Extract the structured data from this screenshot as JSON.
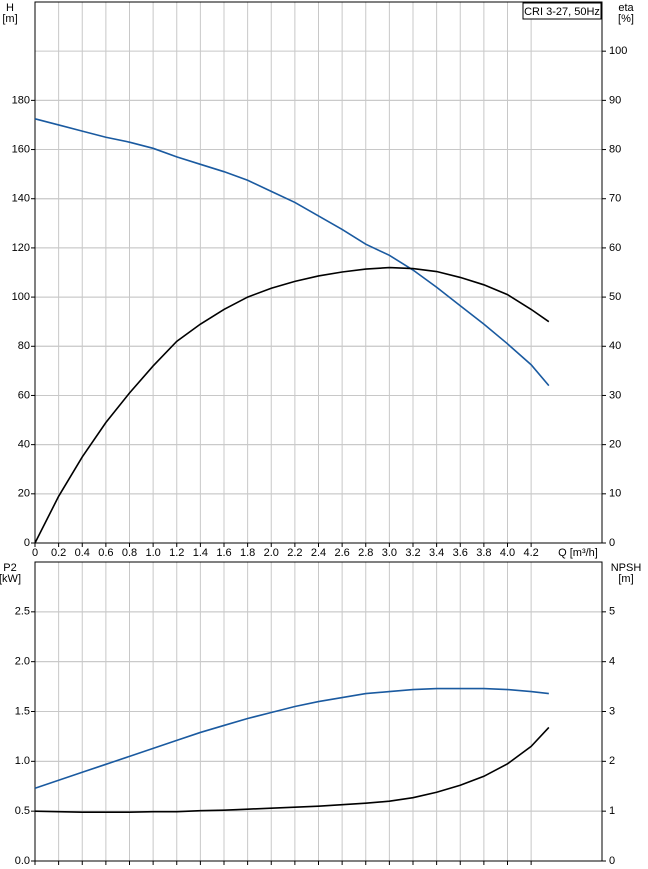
{
  "chart_data": [
    {
      "type": "line",
      "title": "CRI 3-27, 50Hz",
      "ylabel": "H",
      "yunit": "[m]",
      "y2label": "eta",
      "y2unit": "[%]",
      "xlabel": "Q [m³/h]",
      "x": [
        0,
        0.2,
        0.4,
        0.6,
        0.8,
        1.0,
        1.2,
        1.4,
        1.6,
        1.8,
        2.0,
        2.2,
        2.4,
        2.6,
        2.8,
        3.0,
        3.2,
        3.4,
        3.6,
        3.8,
        4.0,
        4.2,
        4.35
      ],
      "series": [
        {
          "color": "#1a5aa0",
          "axis": "y",
          "values": [
            172.5,
            170,
            167.5,
            165,
            163,
            160.5,
            157,
            154,
            151,
            147.5,
            143,
            138.5,
            133,
            127.5,
            121.5,
            117,
            111,
            104,
            96.5,
            89,
            81,
            72.5,
            64
          ]
        },
        {
          "color": "#000000",
          "axis": "y2",
          "values": [
            0,
            9.5,
            17.5,
            24.5,
            30.5,
            36,
            41,
            44.5,
            47.5,
            50,
            51.8,
            53.2,
            54.3,
            55.1,
            55.7,
            56,
            55.8,
            55.2,
            54,
            52.5,
            50.5,
            47.5,
            45
          ]
        }
      ],
      "xlim": [
        0,
        4.8
      ],
      "ylim": [
        0,
        220
      ],
      "y2lim": [
        0,
        110
      ],
      "xticks": [
        0,
        0.2,
        0.4,
        0.6,
        0.8,
        {
          "value": 1,
          "label": "1.0"
        },
        1.2,
        1.4,
        1.6,
        1.8,
        {
          "value": 2,
          "label": "2.0"
        },
        2.2,
        2.4,
        2.6,
        2.8,
        {
          "value": 3,
          "label": "3.0"
        },
        3.2,
        3.4,
        3.6,
        3.8,
        {
          "value": 4,
          "label": "4.0"
        },
        4.2
      ],
      "yticks": [
        0,
        20,
        40,
        60,
        80,
        100,
        120,
        140,
        160,
        180
      ],
      "y2ticks": [
        0,
        10,
        20,
        30,
        40,
        50,
        60,
        70,
        80,
        90,
        100
      ],
      "grid": true
    },
    {
      "type": "line",
      "ylabel": "P2",
      "yunit": "[kW]",
      "y2label": "NPSH",
      "y2unit": "[m]",
      "x": [
        0,
        0.2,
        0.4,
        0.6,
        0.8,
        1.0,
        1.2,
        1.4,
        1.6,
        1.8,
        2.0,
        2.2,
        2.4,
        2.6,
        2.8,
        3.0,
        3.2,
        3.4,
        3.6,
        3.8,
        4.0,
        4.2,
        4.35
      ],
      "series": [
        {
          "color": "#1a5aa0",
          "axis": "y",
          "values": [
            0.73,
            0.81,
            0.89,
            0.97,
            1.05,
            1.13,
            1.21,
            1.29,
            1.36,
            1.43,
            1.49,
            1.55,
            1.6,
            1.64,
            1.68,
            1.7,
            1.72,
            1.73,
            1.73,
            1.73,
            1.72,
            1.7,
            1.68
          ]
        },
        {
          "color": "#000000",
          "axis": "y2",
          "values": [
            1.0,
            0.99,
            0.98,
            0.98,
            0.98,
            0.99,
            0.99,
            1.01,
            1.02,
            1.04,
            1.06,
            1.08,
            1.1,
            1.13,
            1.16,
            1.2,
            1.27,
            1.38,
            1.52,
            1.7,
            1.95,
            2.3,
            2.68
          ]
        }
      ],
      "xlim": [
        0,
        4.8
      ],
      "ylim": [
        0,
        3
      ],
      "y2lim": [
        0,
        6
      ],
      "xticks": [
        0,
        0.2,
        0.4,
        0.6,
        0.8,
        1,
        1.2,
        1.4,
        1.6,
        1.8,
        2,
        2.2,
        2.4,
        2.6,
        2.8,
        3,
        3.2,
        3.4,
        3.6,
        3.8,
        4,
        4.2
      ],
      "yticks": [
        {
          "value": 0,
          "label": "0.0"
        },
        0.5,
        {
          "value": 1,
          "label": "1.0"
        },
        1.5,
        {
          "value": 2,
          "label": "2.0"
        },
        2.5
      ],
      "y2ticks": [
        0,
        1,
        2,
        3,
        4,
        5
      ],
      "grid": true
    }
  ]
}
